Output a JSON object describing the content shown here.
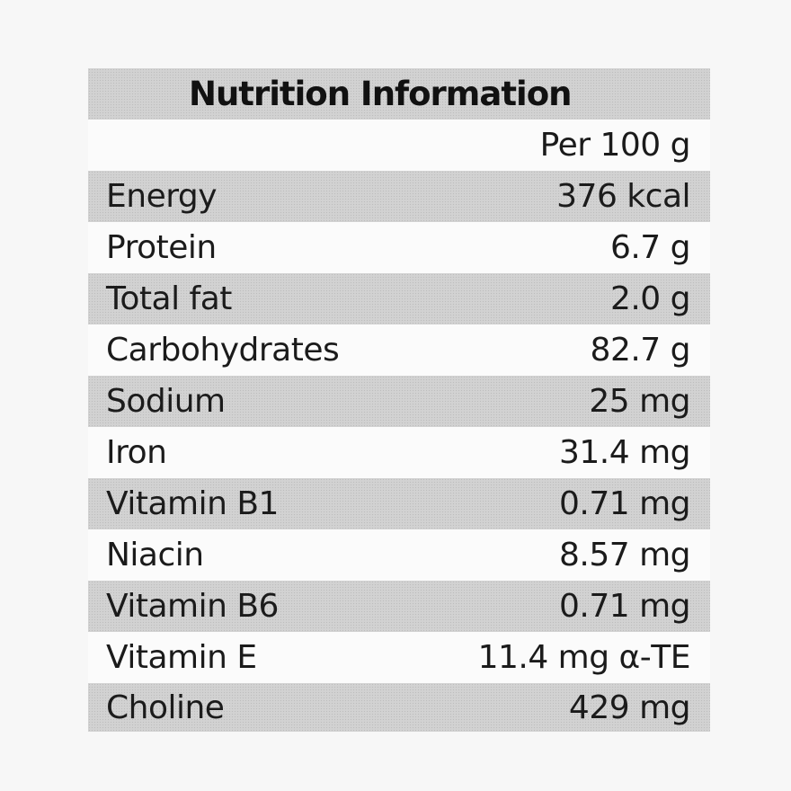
{
  "label": {
    "title": "Nutrition Information",
    "column_header": "Per 100 g",
    "rows": [
      {
        "nutrient": "Energy",
        "amount": "376 kcal"
      },
      {
        "nutrient": "Protein",
        "amount": "6.7 g"
      },
      {
        "nutrient": "Total fat",
        "amount": "2.0 g"
      },
      {
        "nutrient": "Carbohydrates",
        "amount": "82.7 g"
      },
      {
        "nutrient": "Sodium",
        "amount": "25 mg"
      },
      {
        "nutrient": "Iron",
        "amount": "31.4 mg"
      },
      {
        "nutrient": "Vitamin B1",
        "amount": "0.71 mg"
      },
      {
        "nutrient": "Niacin",
        "amount": "8.57 mg"
      },
      {
        "nutrient": "Vitamin B6",
        "amount": "0.71 mg"
      },
      {
        "nutrient": "Vitamin E",
        "amount": "11.4 mg α-TE"
      },
      {
        "nutrient": "Choline",
        "amount": "429 mg"
      }
    ]
  }
}
